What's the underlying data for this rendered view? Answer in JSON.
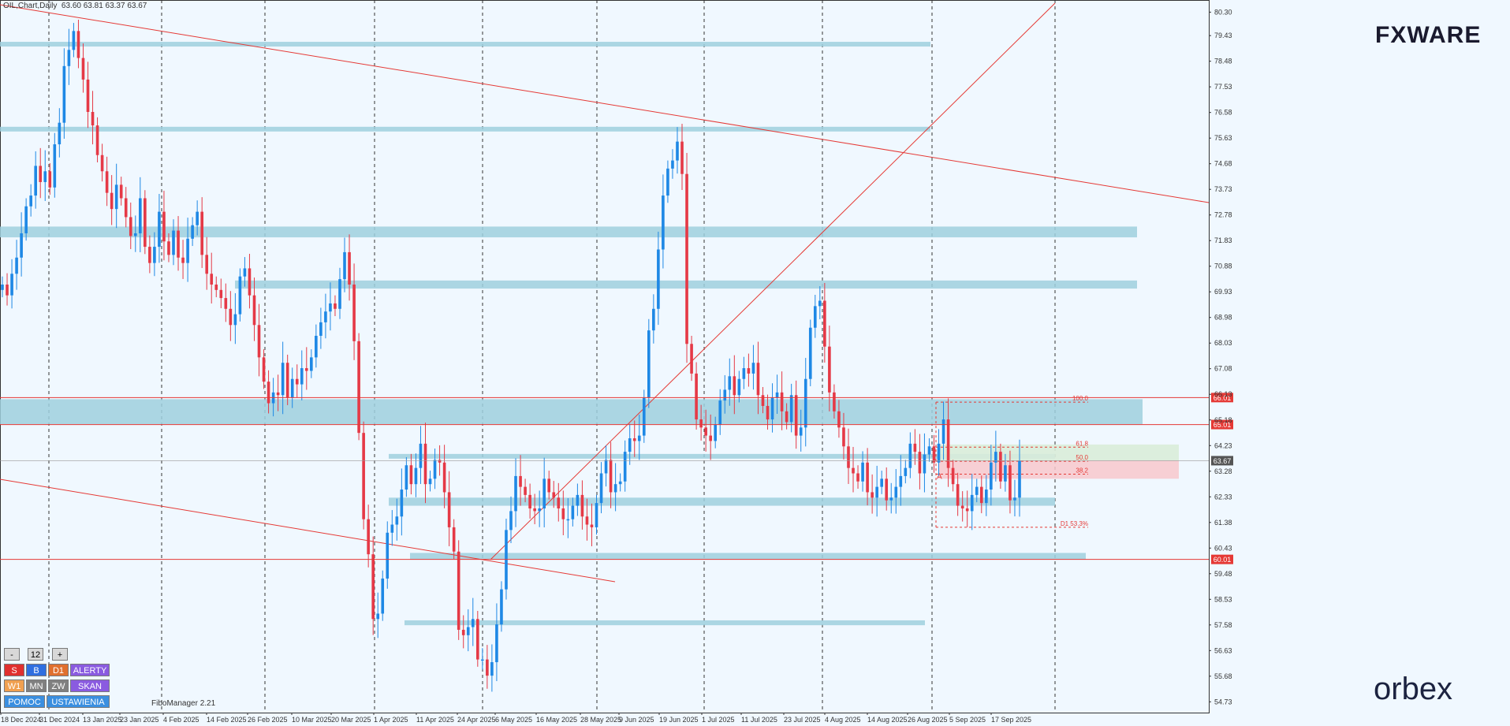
{
  "header": {
    "title": "OIL,Chart,Daily",
    "ohlc": "63.60 63.81 63.37 63.67"
  },
  "logos": {
    "fxware": "FXWARE",
    "orbex": "orbex"
  },
  "fibo_manager_label": "FiboManager 2.21",
  "toolbar": {
    "row1": [
      {
        "label": "-"
      },
      {
        "label": "12"
      },
      {
        "label": "+"
      }
    ],
    "row2": [
      {
        "label": "S",
        "color": "#e0302f"
      },
      {
        "label": "B",
        "color": "#2f6fe0"
      },
      {
        "label": "D1",
        "color": "#e0702f"
      },
      {
        "label": "ALERTY",
        "color": "#8a5be0"
      }
    ],
    "row3": [
      {
        "label": "W1",
        "color": "#f0a050"
      },
      {
        "label": "MN",
        "color": "#808080"
      },
      {
        "label": "ZW",
        "color": "#808080"
      },
      {
        "label": "SKAN",
        "color": "#8a5be0"
      }
    ],
    "row4": [
      {
        "label": "POMOC",
        "color": "#3a8fe0"
      },
      {
        "label": "USTAWIENIA",
        "color": "#3a8fe0"
      }
    ]
  },
  "colors": {
    "bull": "#1e88e5",
    "bear": "#e53946",
    "zone": "#9fd0de",
    "trend": "#e53935",
    "grid": "#333333",
    "level": "#e53935"
  },
  "chart_data": {
    "type": "candlestick",
    "symbol": "OIL",
    "timeframe": "Daily",
    "ylim": [
      54.33,
      80.75
    ],
    "y_ticks": [
      "80.30",
      "79.43",
      "78.48",
      "77.53",
      "76.58",
      "75.63",
      "74.68",
      "73.73",
      "72.78",
      "71.83",
      "70.88",
      "69.93",
      "68.98",
      "68.03",
      "67.08",
      "66.13",
      "65.18",
      "64.23",
      "63.28",
      "62.33",
      "61.38",
      "60.43",
      "59.48",
      "58.53",
      "57.58",
      "56.63",
      "55.68",
      "54.73"
    ],
    "x_ticks": [
      "18 Dec 2024",
      "31 Dec 2024",
      "13 Jan 2025",
      "23 Jan 2025",
      "4 Feb 2025",
      "14 Feb 2025",
      "26 Feb 2025",
      "10 Mar 2025",
      "20 Mar 2025",
      "1 Apr 2025",
      "11 Apr 2025",
      "24 Apr 2025",
      "6 May 2025",
      "16 May 2025",
      "28 May 2025",
      "9 Jun 2025",
      "19 Jun 2025",
      "1 Jul 2025",
      "11 Jul 2025",
      "23 Jul 2025",
      "4 Aug 2025",
      "14 Aug 2025",
      "26 Aug 2025",
      "5 Sep 2025",
      "17 Sep 2025"
    ],
    "candles_close": [
      70.2,
      69.8,
      70.6,
      71.2,
      72.1,
      73.1,
      73.5,
      74.6,
      74.0,
      74.4,
      73.8,
      75.4,
      76.2,
      78.3,
      78.9,
      79.6,
      78.6,
      77.8,
      76.6,
      76.1,
      75.0,
      74.4,
      73.6,
      73.0,
      73.9,
      73.4,
      72.7,
      72.0,
      72.1,
      73.4,
      71.6,
      71.0,
      71.6,
      72.9,
      71.8,
      71.3,
      72.2,
      71.2,
      71.0,
      71.9,
      72.4,
      72.9,
      71.3,
      70.6,
      70.2,
      70.0,
      69.7,
      69.3,
      68.7,
      69.1,
      70.5,
      70.8,
      69.8,
      68.7,
      67.5,
      66.6,
      65.8,
      66.2,
      66.1,
      67.3,
      66.0,
      66.7,
      66.5,
      67.1,
      67.0,
      67.5,
      68.3,
      68.8,
      69.2,
      69.5,
      69.3,
      70.4,
      71.4,
      70.2,
      68.1,
      64.7,
      61.5,
      60.2,
      57.8,
      58.0,
      59.3,
      61.0,
      61.3,
      61.6,
      62.6,
      63.5,
      62.8,
      63.4,
      64.3,
      62.8,
      63.0,
      63.7,
      63.6,
      62.5,
      61.2,
      60.3,
      57.4,
      57.2,
      57.5,
      57.8,
      56.3,
      56.3,
      55.7,
      56.2,
      57.6,
      58.9,
      61.1,
      61.8,
      63.1,
      62.7,
      62.4,
      61.9,
      61.8,
      61.9,
      63.0,
      62.5,
      62.3,
      61.9,
      61.5,
      61.5,
      62.0,
      62.4,
      61.6,
      61.3,
      61.2,
      62.1,
      63.2,
      63.7,
      62.5,
      62.8,
      62.9,
      64.0,
      64.5,
      64.4,
      64.6,
      66.0,
      68.5,
      69.3,
      71.5,
      73.5,
      74.5,
      74.8,
      75.5,
      74.3,
      68.0,
      66.9,
      65.2,
      64.9,
      64.6,
      64.4,
      65.0,
      65.9,
      66.3,
      66.8,
      66.1,
      66.7,
      67.1,
      66.9,
      67.3,
      66.1,
      65.7,
      65.2,
      66.0,
      66.2,
      65.5,
      65.1,
      66.1,
      64.6,
      64.9,
      66.7,
      68.6,
      69.4,
      69.6,
      67.9,
      66.2,
      65.5,
      64.9,
      64.2,
      63.4,
      63.2,
      62.9,
      63.6,
      62.5,
      62.3,
      62.7,
      63.0,
      62.2,
      62.3,
      62.7,
      63.1,
      63.4,
      64.3,
      64.0,
      63.2,
      63.9,
      64.2,
      63.6,
      64.3,
      65.2,
      63.4,
      62.8,
      62.0,
      61.9,
      61.8,
      62.4,
      62.7,
      62.1,
      62.6,
      63.6,
      64.0,
      62.9,
      63.5,
      62.2,
      62.3,
      63.67
    ],
    "zones": [
      {
        "from": 79.05,
        "to": 79.2
      },
      {
        "from": 75.88,
        "to": 76.05
      },
      {
        "from": 71.95,
        "to": 72.35
      },
      {
        "from": 70.05,
        "to": 70.35
      },
      {
        "from": 65.02,
        "to": 65.95
      },
      {
        "from": 63.77,
        "to": 63.92
      },
      {
        "from": 62.0,
        "to": 62.3
      },
      {
        "from": 60.0,
        "to": 60.25
      },
      {
        "from": 57.57,
        "to": 57.75
      }
    ],
    "levels": [
      {
        "label": "66.01",
        "value": 66.01
      },
      {
        "label": "65.01",
        "value": 65.01
      },
      {
        "label": "60.01",
        "value": 60.01
      }
    ],
    "current_price": {
      "label": "63.67",
      "value": 63.67
    },
    "fibonacci": {
      "levels": [
        {
          "label": "100.0",
          "value": 65.84
        },
        {
          "label": "61.8",
          "value": 64.17
        },
        {
          "label": "50.0",
          "value": 63.65
        },
        {
          "label": "38.2",
          "value": 63.17
        },
        {
          "label": "D1 53.3%",
          "value": 61.2
        }
      ],
      "point_label": "A"
    }
  }
}
